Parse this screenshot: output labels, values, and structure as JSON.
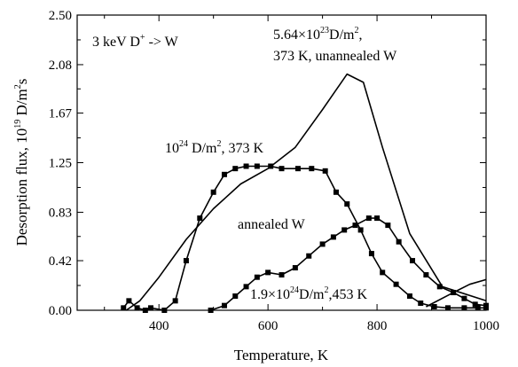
{
  "chart_data": {
    "type": "line",
    "xlabel": "Temperature, K",
    "ylabel": "Desorption flux, 10",
    "ylabel_sup": "19",
    "ylabel_unit": " D/m",
    "ylabel_unit_sup": "2",
    "ylabel_tail": "s",
    "xlim": [
      250,
      1000
    ],
    "ylim": [
      0,
      2.5
    ],
    "x_ticks": [
      400,
      600,
      800,
      1000
    ],
    "x_tick_labels": [
      "400",
      "600",
      "800",
      "1000"
    ],
    "y_ticks": [
      0,
      0.42,
      0.83,
      1.25,
      1.67,
      2.08,
      2.5
    ],
    "y_tick_labels": [
      "0.00",
      "0.42",
      "0.83",
      "1.25",
      "1.67",
      "2.08",
      "2.50"
    ],
    "grid": false,
    "series": [
      {
        "markers": false,
        "x": [
          340,
          365,
          400,
          450,
          500,
          550,
          600,
          650,
          700,
          745,
          775,
          810,
          860,
          920,
          1000
        ],
        "y": [
          0.0,
          0.08,
          0.28,
          0.6,
          0.86,
          1.07,
          1.2,
          1.38,
          1.7,
          2.0,
          1.93,
          1.38,
          0.65,
          0.2,
          0.08
        ]
      },
      {
        "markers": true,
        "x": [
          335,
          345,
          360,
          375,
          385,
          410,
          430,
          450,
          475,
          500,
          520,
          540,
          560,
          580,
          605,
          625,
          655,
          680,
          705,
          725,
          745,
          770,
          790,
          810,
          835,
          860,
          880,
          905,
          930,
          960,
          985,
          1000
        ],
        "y": [
          0.02,
          0.08,
          0.02,
          0.0,
          0.02,
          0.0,
          0.08,
          0.42,
          0.78,
          1.0,
          1.15,
          1.2,
          1.22,
          1.22,
          1.22,
          1.2,
          1.2,
          1.2,
          1.18,
          1.0,
          0.9,
          0.68,
          0.48,
          0.32,
          0.22,
          0.12,
          0.06,
          0.03,
          0.02,
          0.02,
          0.02,
          0.02
        ]
      },
      {
        "markers": true,
        "x": [
          495,
          520,
          540,
          560,
          580,
          600,
          625,
          650,
          675,
          700,
          720,
          740,
          760,
          785,
          800,
          820,
          840,
          865,
          890,
          915,
          940,
          960,
          980,
          1000
        ],
        "y": [
          0.0,
          0.04,
          0.12,
          0.2,
          0.28,
          0.32,
          0.3,
          0.36,
          0.46,
          0.56,
          0.62,
          0.68,
          0.72,
          0.78,
          0.78,
          0.72,
          0.58,
          0.42,
          0.3,
          0.2,
          0.15,
          0.1,
          0.05,
          0.04
        ]
      },
      {
        "markers": false,
        "x": [
          890,
          940,
          970,
          1000
        ],
        "y": [
          0.03,
          0.15,
          0.22,
          0.26
        ]
      }
    ],
    "annotations": {
      "ion": {
        "pre": "3 keV D",
        "sup": "+",
        "post": " -> W"
      },
      "top_line1": {
        "pre": "5.64×10",
        "sup": "23",
        "post": "D/m",
        "sup2": "2",
        "tail": ","
      },
      "top_line2": "373 K, unannealed  W",
      "mid": {
        "pre": "10",
        "sup": "24",
        "post": " D/m",
        "sup2": "2",
        "tail": ", 373 K"
      },
      "annealed": "annealed W",
      "bottom": {
        "pre": "1.9×10",
        "sup": "24",
        "post": "D/m",
        "sup2": "2",
        "tail": ",453 K"
      }
    }
  }
}
